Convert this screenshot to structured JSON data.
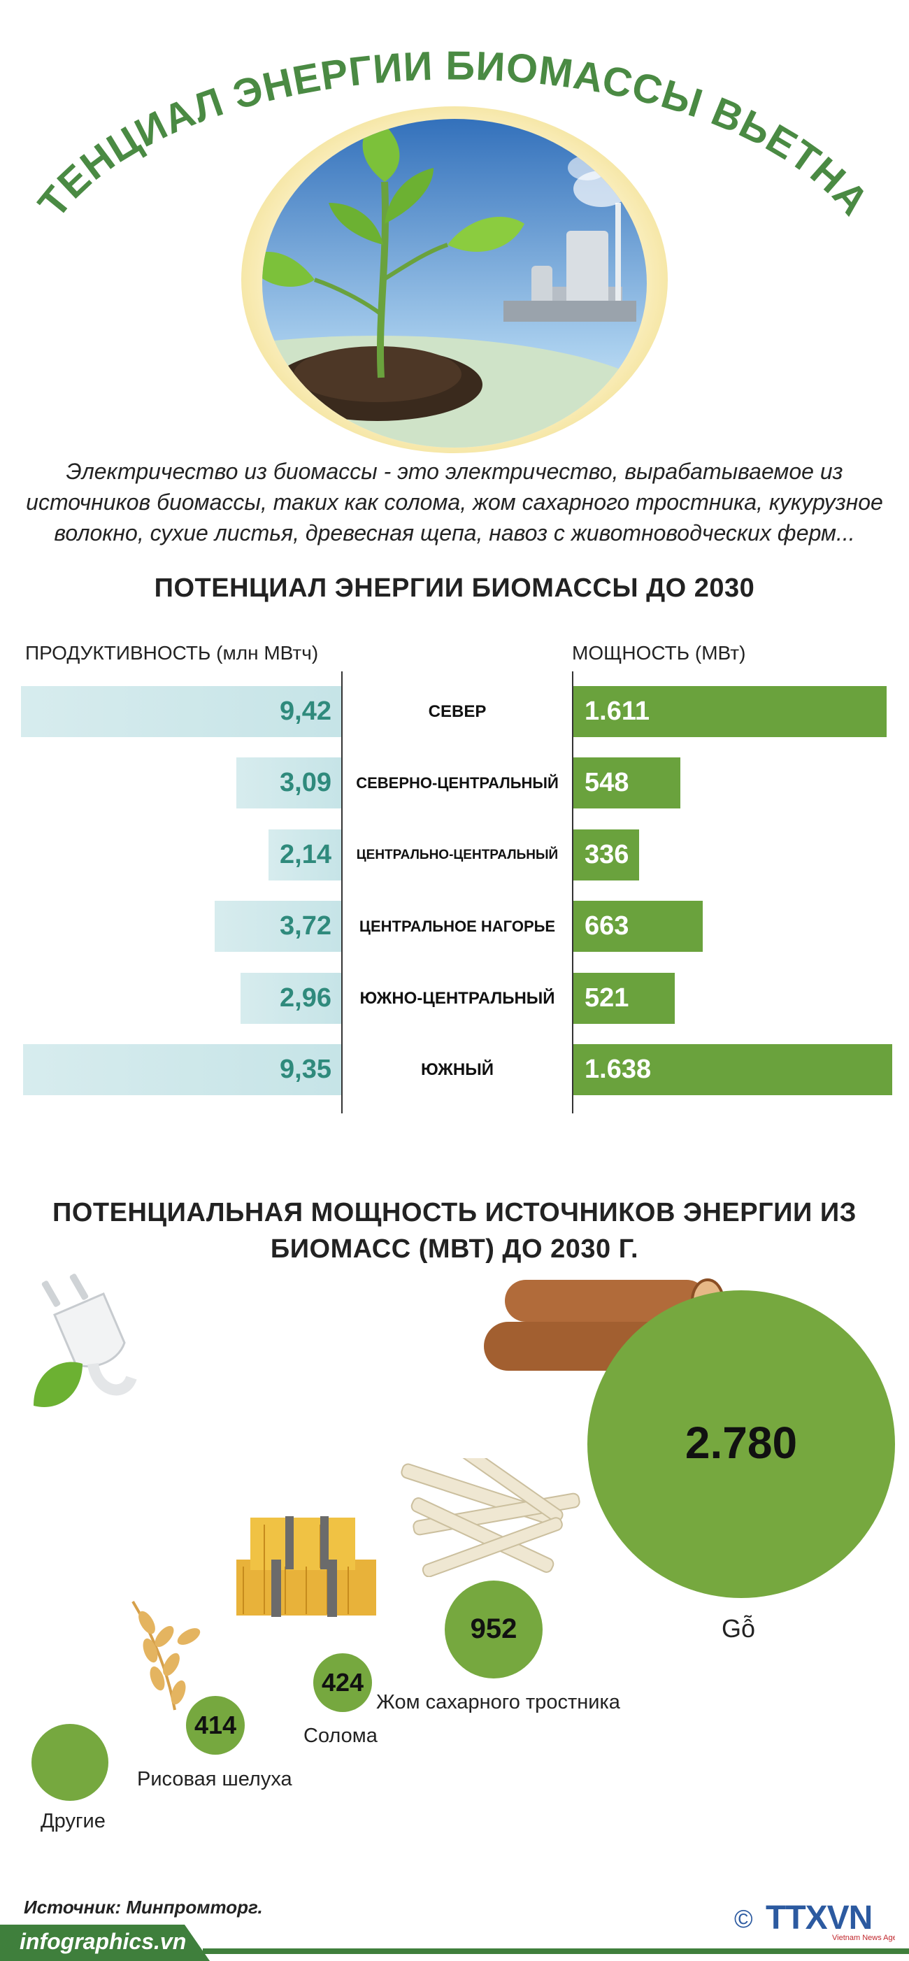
{
  "header": {
    "title": "ПОТЕНЦИАЛ ЭНЕРГИИ БИОМАССЫ ВЬЕТНАМА",
    "intro": "Электричество из биомассы - это электричество, вырабатываемое из источников биомассы, таких как солома, жом сахарного тростника, кукурузное волокно, сухие листья, древесная щепа, навоз с животноводческих ферм..."
  },
  "section1": {
    "title": "ПОТЕНЦИАЛ ЭНЕРГИИ БИОМАССЫ ДО 2030",
    "left_header": "ПРОДУКТИВНОСТЬ (млн МВтч)",
    "right_header": "МОЩНОСТЬ (МВт)"
  },
  "chart_data": {
    "type": "bar",
    "categories": [
      "СЕВЕР",
      "СЕВЕРНО-ЦЕНТРАЛЬНЫЙ",
      "ЦЕНТРАЛЬНО-ЦЕНТРАЛЬНЫЙ",
      "ЦЕНТРАЛЬНОЕ НАГОРЬЕ",
      "ЮЖНО-ЦЕНТРАЛЬНЫЙ",
      "ЮЖНЫЙ"
    ],
    "series": [
      {
        "name": "ПРОДУКТИВНОСТЬ (млн МВтч)",
        "values": [
          9.42,
          3.09,
          2.14,
          3.72,
          2.96,
          9.35
        ],
        "labels": [
          "9,42",
          "3,09",
          "2,14",
          "3,72",
          "2,96",
          "9,35"
        ],
        "color": "#c6e4e7",
        "label_color": "#2f8a7c"
      },
      {
        "name": "МОЩНОСТЬ (МВт)",
        "values": [
          1611,
          548,
          336,
          663,
          521,
          1638
        ],
        "labels": [
          "1.611",
          "548",
          "336",
          "663",
          "521",
          "1.638"
        ],
        "color": "#6aa23d",
        "label_color": "#ffffff"
      }
    ]
  },
  "section2": {
    "title_line1": "ПОТЕНЦИАЛЬНАЯ МОЩНОСТЬ ИСТОЧНИКОВ ЭНЕРГИИ ИЗ",
    "title_line2": "БИОМАСС (МВТ) ДО 2030 Г.",
    "sources": [
      {
        "label": "Gỗ",
        "value": "2.780"
      },
      {
        "label": "Жом сахарного тростника",
        "value": "952"
      },
      {
        "label": "Солома",
        "value": "424"
      },
      {
        "label": "Рисовая шелуха",
        "value": "414"
      },
      {
        "label": "Другие",
        "value": ""
      }
    ]
  },
  "footer": {
    "source": "Источник: Минпромторг.",
    "site": "infographics.vn",
    "logo_text": "TTXVN",
    "logo_sub": "Vietnam News Agency",
    "copyright": "©"
  },
  "colors": {
    "green_dark": "#3f7f3c",
    "green_bar": "#6aa23d",
    "teal_bar": "#c6e4e7",
    "teal_text": "#2f8a7c",
    "bubble": "#76a83f"
  }
}
